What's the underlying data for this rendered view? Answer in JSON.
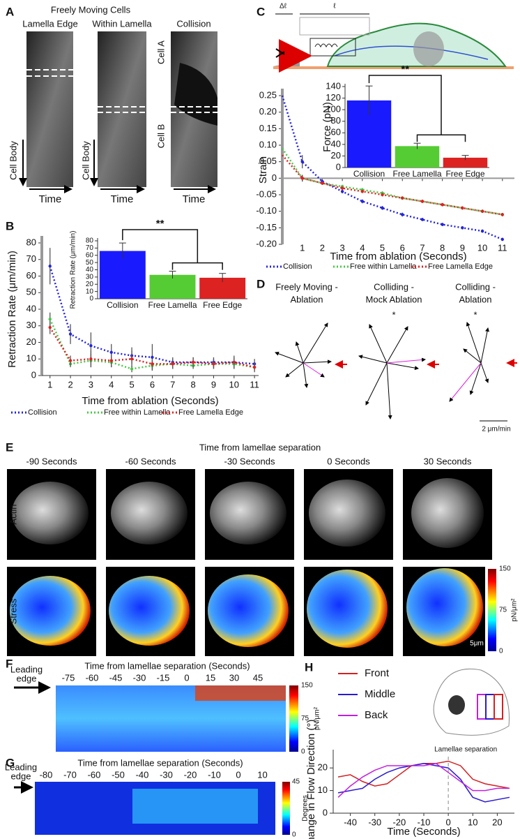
{
  "chart_data": [
    {
      "type": "line",
      "line_style": "dotted",
      "markers": true,
      "xlabel": "Time from ablation (Seconds)",
      "ylabel": "Retraction Rate (μm/min)",
      "x": [
        1,
        2,
        3,
        4,
        5,
        6,
        7,
        8,
        9,
        10,
        11
      ],
      "series": [
        {
          "name": "Collision",
          "color": "#2323e0",
          "values": [
            66,
            25,
            18,
            14,
            12,
            11,
            8,
            8,
            8,
            8,
            7
          ],
          "errors": [
            11,
            6,
            8,
            5,
            5,
            8,
            3,
            3,
            3,
            4,
            3
          ]
        },
        {
          "name": "Free within Lamella",
          "color": "#44c844",
          "values": [
            34,
            7,
            9,
            8,
            4,
            6,
            7,
            6,
            7,
            7,
            5
          ],
          "errors": [
            4,
            2,
            4,
            3,
            2,
            3,
            3,
            2,
            3,
            3,
            2
          ]
        },
        {
          "name": "Free Lamella Edge",
          "color": "#e02020",
          "values": [
            29,
            9,
            10,
            9,
            10,
            7,
            7,
            8,
            7,
            8,
            5
          ],
          "errors": [
            4,
            3,
            5,
            4,
            5,
            3,
            3,
            3,
            3,
            3,
            3
          ]
        }
      ],
      "xlim": [
        0.6,
        11.2
      ],
      "ylim": [
        0,
        80
      ],
      "xticks": [
        1,
        2,
        3,
        4,
        5,
        6,
        7,
        8,
        9,
        10,
        11
      ],
      "yticks": [
        0,
        10,
        20,
        30,
        40,
        50,
        60,
        70,
        80
      ],
      "legend": "bottom"
    },
    {
      "type": "bar",
      "ylabel": "Retraction Rate (μm/min)",
      "annotation": "**",
      "categories": [
        "Collision",
        "Free Lamella",
        "Free Edge"
      ],
      "values": [
        66,
        33,
        29
      ],
      "errors": [
        11,
        5,
        6
      ],
      "colors": [
        "#1a1aff",
        "#55cc33",
        "#dd2222"
      ],
      "ylim": [
        0,
        80
      ],
      "yticks": [
        0,
        10,
        20,
        30,
        40,
        50,
        60,
        70,
        80
      ]
    },
    {
      "type": "line",
      "line_style": "dotted",
      "markers": true,
      "xlabel": "Time from ablation (Seconds)",
      "ylabel": "Strain",
      "x": [
        0,
        1,
        2,
        3,
        4,
        5,
        6,
        7,
        8,
        9,
        10,
        11
      ],
      "series": [
        {
          "name": "Collision",
          "color": "#2323e0",
          "values": [
            0.25,
            0.05,
            -0.01,
            -0.04,
            -0.07,
            -0.09,
            -0.11,
            -0.125,
            -0.14,
            -0.15,
            -0.16,
            -0.185
          ],
          "errors": [
            null,
            0.02,
            0.008,
            0.006,
            0.006,
            0.006,
            0.006,
            0.005,
            0.005,
            0.005,
            0.005,
            0.005
          ]
        },
        {
          "name": "Free within Lamella",
          "color": "#44c844",
          "values": [
            0.09,
            0.0,
            -0.015,
            -0.025,
            -0.035,
            -0.045,
            -0.06,
            -0.07,
            -0.08,
            -0.09,
            -0.1,
            -0.11
          ],
          "errors": [
            null,
            0.01,
            0.005,
            0.005,
            0.005,
            0.005,
            0.005,
            0.005,
            0.005,
            0.005,
            0.005,
            0.005
          ]
        },
        {
          "name": "Free Lamella Edge",
          "color": "#e02020",
          "values": [
            0.07,
            0.0,
            -0.015,
            -0.03,
            -0.04,
            -0.05,
            -0.06,
            -0.07,
            -0.08,
            -0.09,
            -0.1,
            -0.11
          ],
          "errors": [
            null,
            0.01,
            0.005,
            0.005,
            0.005,
            0.005,
            0.005,
            0.005,
            0.005,
            0.005,
            0.005,
            0.005
          ]
        }
      ],
      "xlim": [
        0,
        11.6
      ],
      "ylim": [
        -0.2,
        0.25
      ],
      "xticks": [
        1,
        2,
        3,
        4,
        5,
        6,
        7,
        8,
        9,
        10,
        11
      ],
      "yticks": [
        {
          "value": -0.2,
          "label": "-0.20"
        },
        -0.15,
        {
          "value": -0.1,
          "label": "-0.10"
        },
        -0.05,
        0,
        0.05,
        {
          "value": 0.1,
          "label": "0.10"
        },
        0.15,
        {
          "value": 0.2,
          "label": "0.20"
        },
        0.25
      ],
      "legend": "bottom"
    },
    {
      "type": "bar",
      "ylabel": "Force (pN)",
      "annotation": "**",
      "categories": [
        "Collision",
        "Free Lamella",
        "Free Edge"
      ],
      "values": [
        116,
        37,
        17
      ],
      "errors": [
        25,
        5,
        4
      ],
      "colors": [
        "#1a1aff",
        "#55cc33",
        "#dd2222"
      ],
      "ylim": [
        0,
        140
      ],
      "yticks": [
        0,
        20,
        40,
        60,
        80,
        100,
        120,
        140
      ]
    },
    {
      "type": "line",
      "line_style": "solid",
      "markers": false,
      "xlabel": "Time (Seconds)",
      "ylabel": "Change in Flow Direction (°)",
      "annotation": "Lamellae separation",
      "vline": 0,
      "x": [
        -45,
        -40,
        -35,
        -30,
        -25,
        -20,
        -15,
        -10,
        -5,
        0,
        5,
        10,
        15,
        20,
        25
      ],
      "series": [
        {
          "name": "Front",
          "color": "#d42020",
          "values": [
            16,
            17,
            14,
            12,
            13,
            17,
            21,
            22,
            22,
            23,
            21,
            15,
            13,
            12,
            11
          ]
        },
        {
          "name": "Middle",
          "color": "#2a1ad0",
          "values": [
            9,
            10,
            11,
            15,
            18,
            20,
            21,
            22,
            21,
            20,
            15,
            7,
            5,
            6,
            7
          ]
        },
        {
          "name": "Back",
          "color": "#c020e0",
          "values": [
            7,
            12,
            16,
            19,
            21,
            21,
            21,
            21,
            22,
            18,
            14,
            10,
            10,
            11,
            11
          ]
        }
      ],
      "xlim": [
        -47,
        27
      ],
      "ylim": [
        0,
        25
      ],
      "xticks": [
        -40,
        -30,
        -20,
        -10,
        0,
        10,
        20
      ],
      "yticks": [
        0,
        10,
        20
      ],
      "legend": "left-top"
    }
  ],
  "panels": {
    "letters": [
      "A",
      "B",
      "C",
      "D",
      "E",
      "F",
      "G",
      "H"
    ],
    "A": {
      "title": "Freely Moving Cells",
      "columns": [
        "Lamella Edge",
        "Within Lamella",
        "Collision"
      ],
      "cell_body": "Cell Body",
      "cell_a": "Cell A",
      "cell_b": "Cell B",
      "time": "Time"
    },
    "C": {
      "delta": "Δℓ",
      "length": "ℓ"
    },
    "D": {
      "groups": [
        {
          "lines": [
            "Freely Moving -",
            "Ablation"
          ]
        },
        {
          "lines": [
            "Colliding -",
            "Mock Ablation"
          ],
          "significance": "*"
        },
        {
          "lines": [
            "Colliding -",
            "Ablation"
          ],
          "significance": "*"
        }
      ],
      "scale": "2 μm/min"
    },
    "E": {
      "title": "Time from lamellae separation",
      "columns": [
        "-90 Seconds",
        "-60 Seconds",
        "-30 Seconds",
        "0 Seconds",
        "30 Seconds"
      ],
      "rows": [
        "Actin",
        "Stress"
      ],
      "colorbar": {
        "ticks": [
          150,
          75,
          0
        ],
        "unit": "pN/μm²"
      },
      "scale": "5μm"
    },
    "F": {
      "leading_edge": [
        "Leading",
        "edge"
      ],
      "title": "Time from lamellae separation (Seconds)",
      "times": [
        -75,
        -60,
        -45,
        -30,
        -15,
        0,
        15,
        30,
        45
      ],
      "colorbar": {
        "ticks": [
          150,
          75,
          0
        ],
        "unit": "pN/μm²"
      }
    },
    "G": {
      "leading_edge": [
        "Leading",
        "edge"
      ],
      "title": "Time from lamellae separation (Seconds)",
      "times": [
        -80,
        -70,
        -60,
        -50,
        -40,
        -30,
        -20,
        -10,
        0,
        10
      ],
      "colorbar": {
        "ticks": [
          45,
          0
        ],
        "unit": "Degrees"
      }
    }
  }
}
